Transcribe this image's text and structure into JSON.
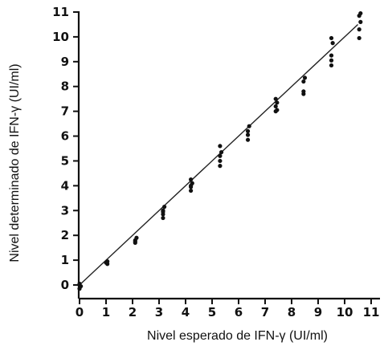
{
  "chart_data": {
    "type": "scatter",
    "title": "",
    "xlabel": "Nivel esperado de IFN-γ (UI/ml)",
    "ylabel": "Nivel determinado de IFN-γ (UI/ml)",
    "xlim": [
      0,
      11
    ],
    "ylim": [
      0,
      11
    ],
    "xticks": [
      0,
      1,
      2,
      3,
      4,
      5,
      6,
      7,
      8,
      9,
      10,
      11
    ],
    "yticks": [
      0,
      1,
      2,
      3,
      4,
      5,
      6,
      7,
      8,
      9,
      10,
      11
    ],
    "grid": false,
    "legend": "none",
    "colors": {
      "points": "#111111",
      "line": "#222222",
      "axes": "#111111"
    },
    "fit_line": {
      "from": [
        0,
        0
      ],
      "to": [
        10.5,
        10.5
      ]
    },
    "series": [
      {
        "points": [
          [
            0.0,
            -0.15
          ],
          [
            0.0,
            0.0
          ],
          [
            0.05,
            -0.05
          ],
          [
            0.0,
            0.05
          ],
          [
            1.05,
            0.85
          ],
          [
            1.05,
            0.95
          ],
          [
            1.0,
            0.9
          ],
          [
            2.1,
            1.7
          ],
          [
            2.1,
            1.8
          ],
          [
            2.15,
            1.9
          ],
          [
            2.1,
            1.75
          ],
          [
            3.15,
            2.7
          ],
          [
            3.15,
            2.85
          ],
          [
            3.15,
            3.0
          ],
          [
            3.2,
            3.15
          ],
          [
            3.15,
            2.95
          ],
          [
            4.2,
            3.8
          ],
          [
            4.2,
            3.95
          ],
          [
            4.25,
            4.1
          ],
          [
            4.2,
            4.25
          ],
          [
            4.2,
            4.0
          ],
          [
            5.3,
            4.8
          ],
          [
            5.3,
            5.0
          ],
          [
            5.3,
            5.2
          ],
          [
            5.35,
            5.35
          ],
          [
            5.3,
            5.6
          ],
          [
            6.35,
            5.85
          ],
          [
            6.35,
            6.05
          ],
          [
            6.35,
            6.2
          ],
          [
            6.4,
            6.4
          ],
          [
            7.4,
            7.0
          ],
          [
            7.4,
            7.2
          ],
          [
            7.45,
            7.35
          ],
          [
            7.4,
            7.5
          ],
          [
            7.45,
            7.05
          ],
          [
            8.45,
            7.7
          ],
          [
            8.45,
            7.8
          ],
          [
            8.45,
            8.2
          ],
          [
            8.5,
            8.35
          ],
          [
            9.5,
            8.85
          ],
          [
            9.5,
            9.05
          ],
          [
            9.5,
            9.25
          ],
          [
            9.55,
            9.75
          ],
          [
            9.5,
            9.95
          ],
          [
            10.55,
            9.95
          ],
          [
            10.55,
            10.3
          ],
          [
            10.6,
            10.6
          ],
          [
            10.55,
            10.85
          ],
          [
            10.6,
            10.95
          ]
        ]
      }
    ]
  }
}
